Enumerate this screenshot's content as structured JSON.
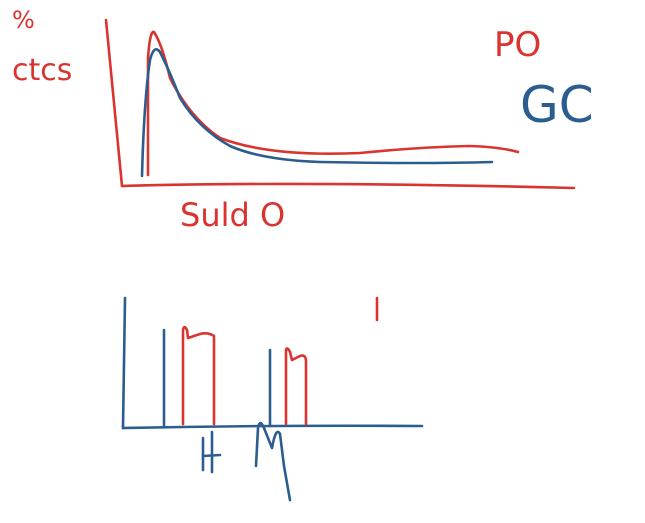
{
  "colors": {
    "red": "#d9342f",
    "blue": "#2c5d8f",
    "background": "#ffffff"
  },
  "top_panel": {
    "ylabel_symbol": "%",
    "ylabel": "ctcs",
    "xlabel": "Suld O",
    "legend": [
      {
        "label": "PO",
        "color": "red"
      },
      {
        "label": "GC",
        "color": "blue"
      }
    ]
  },
  "bottom_panel": {
    "tick_labels": [
      "H",
      "M"
    ],
    "stray_mark": "|"
  },
  "chart_data": {
    "type": "diagram",
    "panels": [
      {
        "name": "top",
        "series": [
          {
            "name": "PO",
            "color": "red",
            "shape": "sharp peak near left, long tail that slightly rises at far right"
          },
          {
            "name": "GC",
            "color": "blue",
            "shape": "peak near left, tail flattening lower than red"
          }
        ]
      },
      {
        "name": "bottom",
        "groups": [
          {
            "label": "H",
            "bars": [
              "blue",
              "red",
              "red"
            ]
          },
          {
            "label": "M",
            "bars": [
              "blue",
              "red",
              "red"
            ]
          }
        ]
      }
    ]
  }
}
